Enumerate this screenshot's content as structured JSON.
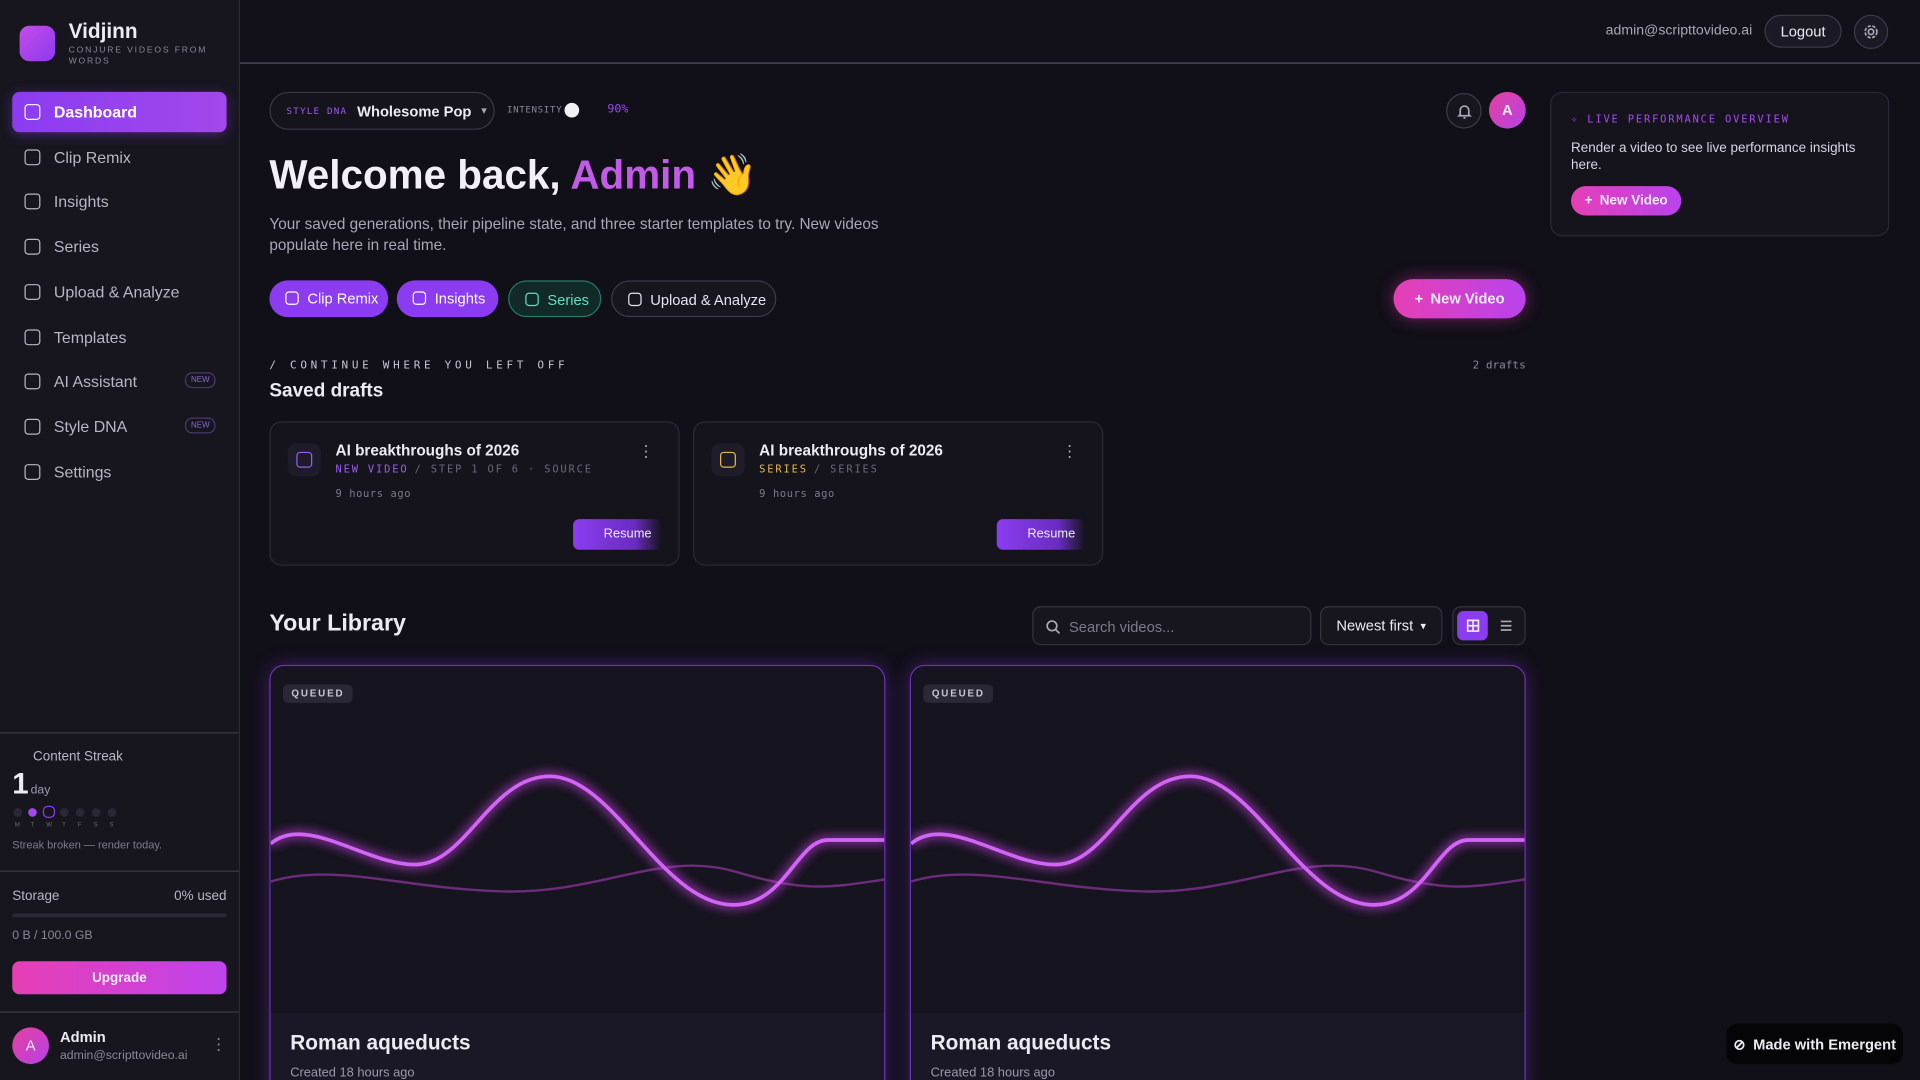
{
  "sidebar": {
    "brand": "Vidjinn",
    "tagline": "CONJURE VIDEOS FROM WORDS",
    "nav": [
      {
        "label": "Dashboard"
      },
      {
        "label": "Clip Remix"
      },
      {
        "label": "Insights"
      },
      {
        "label": "Series"
      },
      {
        "label": "Upload & Analyze"
      },
      {
        "label": "Templates"
      },
      {
        "label": "AI Assistant",
        "badge": "NEW"
      },
      {
        "label": "Style DNA",
        "badge": "NEW"
      },
      {
        "label": "Settings"
      }
    ],
    "streak": {
      "title": "Content Streak",
      "count": "1",
      "unit": "day",
      "days": [
        "M",
        "T",
        "W",
        "T",
        "F",
        "S",
        "S"
      ],
      "note": "Streak broken — render today."
    },
    "storage": {
      "label": "Storage",
      "used": "0% used",
      "amount": "0 B / 100.0 GB",
      "button": "Upgrade"
    },
    "user": {
      "initial": "A",
      "name": "Admin",
      "email": "admin@scripttovideo.ai"
    }
  },
  "topbar": {
    "email": "admin@scripttovideo.ai",
    "logout": "Logout"
  },
  "style_dna": {
    "label": "STYLE DNA",
    "value": "Wholesome Pop",
    "intensity_label": "INTENSITY",
    "intensity": "90%"
  },
  "avatar": "A",
  "hero": {
    "greeting": "Welcome back,",
    "name": "Admin",
    "emoji": "👋",
    "subtitle": "Your saved generations, their pipeline state, and three starter templates to try. New videos populate here in real time."
  },
  "quick_actions": [
    "Clip Remix",
    "Insights",
    "Series",
    "Upload & Analyze"
  ],
  "new_video": "New Video",
  "drafts": {
    "kicker": "/ CONTINUE WHERE YOU LEFT OFF",
    "title": "Saved drafts",
    "count": "2 drafts",
    "items": [
      {
        "title": "AI breakthroughs of 2026",
        "type": "NEW VIDEO",
        "path": "/ STEP 1 OF 6 · SOURCE",
        "time": "9 hours ago",
        "action": "Resume"
      },
      {
        "title": "AI breakthroughs of 2026",
        "type": "SERIES",
        "path": "/ SERIES",
        "time": "9 hours ago",
        "action": "Resume"
      }
    ]
  },
  "library": {
    "title": "Your Library",
    "search": "Search videos...",
    "sort": "Newest first",
    "items": [
      {
        "status": "QUEUED",
        "title": "Roman aqueducts",
        "created": "Created 18 hours ago"
      },
      {
        "status": "QUEUED",
        "title": "Roman aqueducts",
        "created": "Created 18 hours ago"
      }
    ]
  },
  "live": {
    "title": "LIVE PERFORMANCE OVERVIEW",
    "text": "Render a video to see live performance insights here.",
    "button": "New Video"
  },
  "badge": "Made with Emergent"
}
